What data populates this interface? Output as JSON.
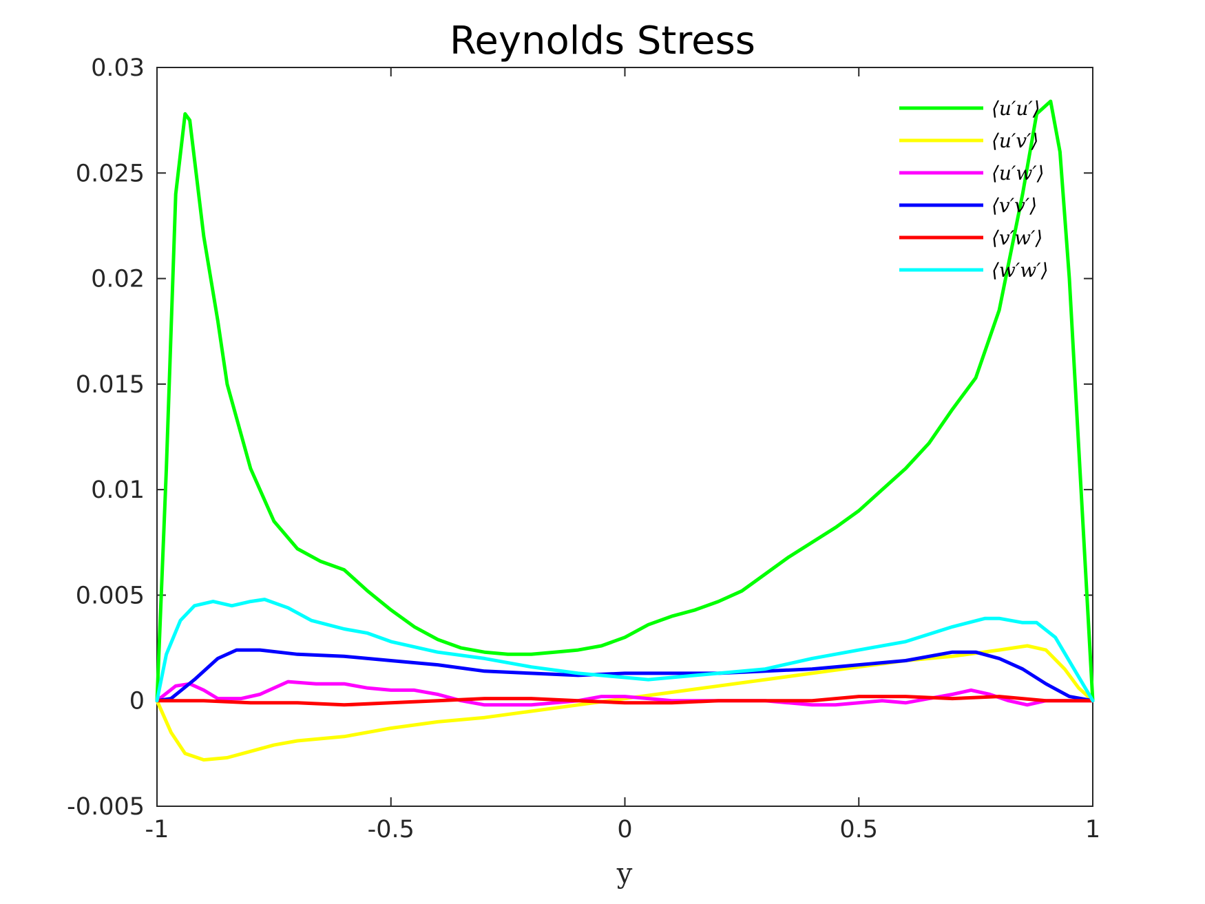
{
  "chart_data": {
    "type": "line",
    "title": "Reynolds Stress",
    "xlabel": "y",
    "ylabel": "",
    "xlim": [
      -1,
      1
    ],
    "ylim": [
      -0.005,
      0.03
    ],
    "x_ticks": [
      "-1",
      "-0.5",
      "0",
      "0.5",
      "1"
    ],
    "x_tick_values": [
      -1,
      -0.5,
      0,
      0.5,
      1
    ],
    "y_ticks": [
      "-0.005",
      "0",
      "0.005",
      "0.01",
      "0.015",
      "0.02",
      "0.025",
      "0.03"
    ],
    "y_tick_values": [
      -0.005,
      0,
      0.005,
      0.01,
      0.015,
      0.02,
      0.025,
      0.03
    ],
    "grid": false,
    "legend_position": "top-right",
    "series": [
      {
        "name": "⟨u′u′⟩",
        "color": "#00ff00",
        "points": [
          [
            -1,
            0
          ],
          [
            -0.98,
            0.011
          ],
          [
            -0.96,
            0.024
          ],
          [
            -0.94,
            0.0278
          ],
          [
            -0.93,
            0.0275
          ],
          [
            -0.9,
            0.022
          ],
          [
            -0.87,
            0.018
          ],
          [
            -0.85,
            0.015
          ],
          [
            -0.8,
            0.011
          ],
          [
            -0.75,
            0.0085
          ],
          [
            -0.7,
            0.0072
          ],
          [
            -0.65,
            0.0066
          ],
          [
            -0.6,
            0.0062
          ],
          [
            -0.55,
            0.0052
          ],
          [
            -0.5,
            0.0043
          ],
          [
            -0.45,
            0.0035
          ],
          [
            -0.4,
            0.0029
          ],
          [
            -0.35,
            0.0025
          ],
          [
            -0.3,
            0.0023
          ],
          [
            -0.25,
            0.0022
          ],
          [
            -0.2,
            0.0022
          ],
          [
            -0.15,
            0.0023
          ],
          [
            -0.1,
            0.0024
          ],
          [
            -0.05,
            0.0026
          ],
          [
            0,
            0.003
          ],
          [
            0.05,
            0.0036
          ],
          [
            0.1,
            0.004
          ],
          [
            0.15,
            0.0043
          ],
          [
            0.2,
            0.0047
          ],
          [
            0.25,
            0.0052
          ],
          [
            0.3,
            0.006
          ],
          [
            0.35,
            0.0068
          ],
          [
            0.4,
            0.0075
          ],
          [
            0.45,
            0.0082
          ],
          [
            0.5,
            0.009
          ],
          [
            0.55,
            0.01
          ],
          [
            0.6,
            0.011
          ],
          [
            0.65,
            0.0122
          ],
          [
            0.7,
            0.0138
          ],
          [
            0.75,
            0.0153
          ],
          [
            0.8,
            0.0185
          ],
          [
            0.85,
            0.024
          ],
          [
            0.88,
            0.0278
          ],
          [
            0.91,
            0.0284
          ],
          [
            0.93,
            0.026
          ],
          [
            0.95,
            0.02
          ],
          [
            0.97,
            0.012
          ],
          [
            1,
            0
          ]
        ]
      },
      {
        "name": "⟨u′v′⟩",
        "color": "#ffff00",
        "points": [
          [
            -1,
            0
          ],
          [
            -0.97,
            -0.0015
          ],
          [
            -0.94,
            -0.0025
          ],
          [
            -0.9,
            -0.0028
          ],
          [
            -0.85,
            -0.0027
          ],
          [
            -0.8,
            -0.0024
          ],
          [
            -0.75,
            -0.0021
          ],
          [
            -0.7,
            -0.0019
          ],
          [
            -0.6,
            -0.0017
          ],
          [
            -0.5,
            -0.0013
          ],
          [
            -0.4,
            -0.001
          ],
          [
            -0.3,
            -0.0008
          ],
          [
            -0.2,
            -0.0005
          ],
          [
            -0.1,
            -0.0002
          ],
          [
            0,
            0.0001
          ],
          [
            0.1,
            0.0004
          ],
          [
            0.2,
            0.0007
          ],
          [
            0.3,
            0.001
          ],
          [
            0.4,
            0.0013
          ],
          [
            0.5,
            0.0016
          ],
          [
            0.6,
            0.0019
          ],
          [
            0.7,
            0.0021
          ],
          [
            0.8,
            0.0024
          ],
          [
            0.86,
            0.0026
          ],
          [
            0.9,
            0.0024
          ],
          [
            0.94,
            0.0015
          ],
          [
            0.97,
            0.0006
          ],
          [
            1,
            0
          ]
        ]
      },
      {
        "name": "⟨u′w′⟩",
        "color": "#ff00ff",
        "points": [
          [
            -1,
            0
          ],
          [
            -0.96,
            0.0007
          ],
          [
            -0.93,
            0.0008
          ],
          [
            -0.9,
            0.0005
          ],
          [
            -0.87,
            0.0001
          ],
          [
            -0.82,
            0.0001
          ],
          [
            -0.78,
            0.0003
          ],
          [
            -0.72,
            0.0009
          ],
          [
            -0.66,
            0.0008
          ],
          [
            -0.6,
            0.0008
          ],
          [
            -0.55,
            0.0006
          ],
          [
            -0.5,
            0.0005
          ],
          [
            -0.45,
            0.0005
          ],
          [
            -0.4,
            0.0003
          ],
          [
            -0.35,
            0
          ],
          [
            -0.3,
            -0.0002
          ],
          [
            -0.25,
            -0.0002
          ],
          [
            -0.2,
            -0.0002
          ],
          [
            -0.1,
            0
          ],
          [
            -0.05,
            0.0002
          ],
          [
            0,
            0.0002
          ],
          [
            0.05,
            0.0001
          ],
          [
            0.1,
            0
          ],
          [
            0.2,
            0
          ],
          [
            0.3,
            0
          ],
          [
            0.35,
            -0.0001
          ],
          [
            0.4,
            -0.0002
          ],
          [
            0.45,
            -0.0002
          ],
          [
            0.5,
            -0.0001
          ],
          [
            0.55,
            0
          ],
          [
            0.6,
            -0.0001
          ],
          [
            0.65,
            0.0001
          ],
          [
            0.7,
            0.0003
          ],
          [
            0.74,
            0.0005
          ],
          [
            0.78,
            0.0003
          ],
          [
            0.82,
            0
          ],
          [
            0.86,
            -0.0002
          ],
          [
            0.9,
            0
          ],
          [
            1,
            0
          ]
        ]
      },
      {
        "name": "⟨v′v′⟩",
        "color": "#0000ff",
        "points": [
          [
            -1,
            0
          ],
          [
            -0.97,
            0.0001
          ],
          [
            -0.92,
            0.001
          ],
          [
            -0.87,
            0.002
          ],
          [
            -0.83,
            0.0024
          ],
          [
            -0.78,
            0.0024
          ],
          [
            -0.7,
            0.0022
          ],
          [
            -0.6,
            0.0021
          ],
          [
            -0.5,
            0.0019
          ],
          [
            -0.4,
            0.0017
          ],
          [
            -0.3,
            0.0014
          ],
          [
            -0.2,
            0.0013
          ],
          [
            -0.1,
            0.0012
          ],
          [
            0,
            0.0013
          ],
          [
            0.1,
            0.0013
          ],
          [
            0.2,
            0.0013
          ],
          [
            0.3,
            0.0014
          ],
          [
            0.4,
            0.0015
          ],
          [
            0.5,
            0.0017
          ],
          [
            0.6,
            0.0019
          ],
          [
            0.7,
            0.0023
          ],
          [
            0.75,
            0.0023
          ],
          [
            0.8,
            0.002
          ],
          [
            0.85,
            0.0015
          ],
          [
            0.9,
            0.0008
          ],
          [
            0.95,
            0.0002
          ],
          [
            1,
            0
          ]
        ]
      },
      {
        "name": "⟨v′w′⟩",
        "color": "#ff0000",
        "points": [
          [
            -1,
            0
          ],
          [
            -0.9,
            0
          ],
          [
            -0.8,
            -0.0001
          ],
          [
            -0.7,
            -0.0001
          ],
          [
            -0.6,
            -0.0002
          ],
          [
            -0.5,
            -0.0001
          ],
          [
            -0.4,
            0
          ],
          [
            -0.3,
            0.0001
          ],
          [
            -0.2,
            0.0001
          ],
          [
            -0.1,
            0
          ],
          [
            0,
            -0.0001
          ],
          [
            0.1,
            -0.0001
          ],
          [
            0.2,
            0
          ],
          [
            0.3,
            0
          ],
          [
            0.4,
            0
          ],
          [
            0.5,
            0.0002
          ],
          [
            0.6,
            0.0002
          ],
          [
            0.7,
            0.0001
          ],
          [
            0.8,
            0.0002
          ],
          [
            0.9,
            0
          ],
          [
            1,
            0
          ]
        ]
      },
      {
        "name": "⟨w′w′⟩",
        "color": "#00ffff",
        "points": [
          [
            -1,
            0
          ],
          [
            -0.98,
            0.0022
          ],
          [
            -0.95,
            0.0038
          ],
          [
            -0.92,
            0.0045
          ],
          [
            -0.88,
            0.0047
          ],
          [
            -0.84,
            0.0045
          ],
          [
            -0.8,
            0.0047
          ],
          [
            -0.77,
            0.0048
          ],
          [
            -0.72,
            0.0044
          ],
          [
            -0.67,
            0.0038
          ],
          [
            -0.6,
            0.0034
          ],
          [
            -0.55,
            0.0032
          ],
          [
            -0.5,
            0.0028
          ],
          [
            -0.4,
            0.0023
          ],
          [
            -0.3,
            0.002
          ],
          [
            -0.2,
            0.0016
          ],
          [
            -0.1,
            0.0013
          ],
          [
            0,
            0.0011
          ],
          [
            0.05,
            0.001
          ],
          [
            0.1,
            0.0011
          ],
          [
            0.2,
            0.0013
          ],
          [
            0.3,
            0.0015
          ],
          [
            0.4,
            0.002
          ],
          [
            0.5,
            0.0024
          ],
          [
            0.6,
            0.0028
          ],
          [
            0.7,
            0.0035
          ],
          [
            0.77,
            0.0039
          ],
          [
            0.8,
            0.0039
          ],
          [
            0.85,
            0.0037
          ],
          [
            0.88,
            0.0037
          ],
          [
            0.92,
            0.003
          ],
          [
            0.96,
            0.0015
          ],
          [
            1,
            0
          ]
        ]
      }
    ]
  }
}
